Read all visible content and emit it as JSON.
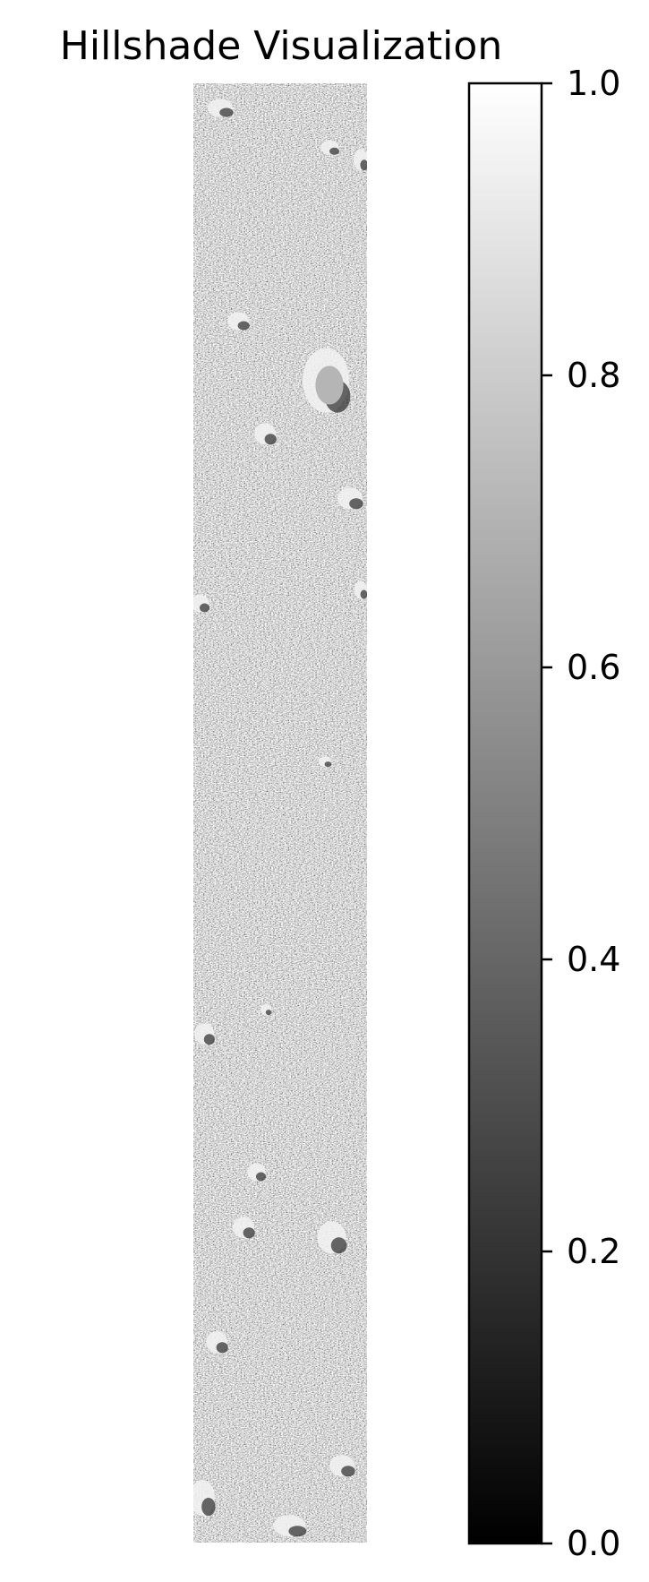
{
  "chart_data": {
    "type": "heatmap",
    "title": "Hillshade Visualization",
    "colormap": "gray",
    "colormap_colors": [
      "#000000",
      "#ffffff"
    ],
    "value_range": [
      0,
      1
    ],
    "grid": false,
    "axes_visible": false,
    "colorbar": {
      "placement": "right",
      "range": [
        0,
        1
      ],
      "ticks": [
        0.0,
        0.2,
        0.4,
        0.6,
        0.8,
        1.0
      ],
      "tick_labels": [
        "0.0",
        "0.2",
        "0.4",
        "0.6",
        "0.8",
        "1.0"
      ]
    },
    "dominant_value": 0.7
  }
}
